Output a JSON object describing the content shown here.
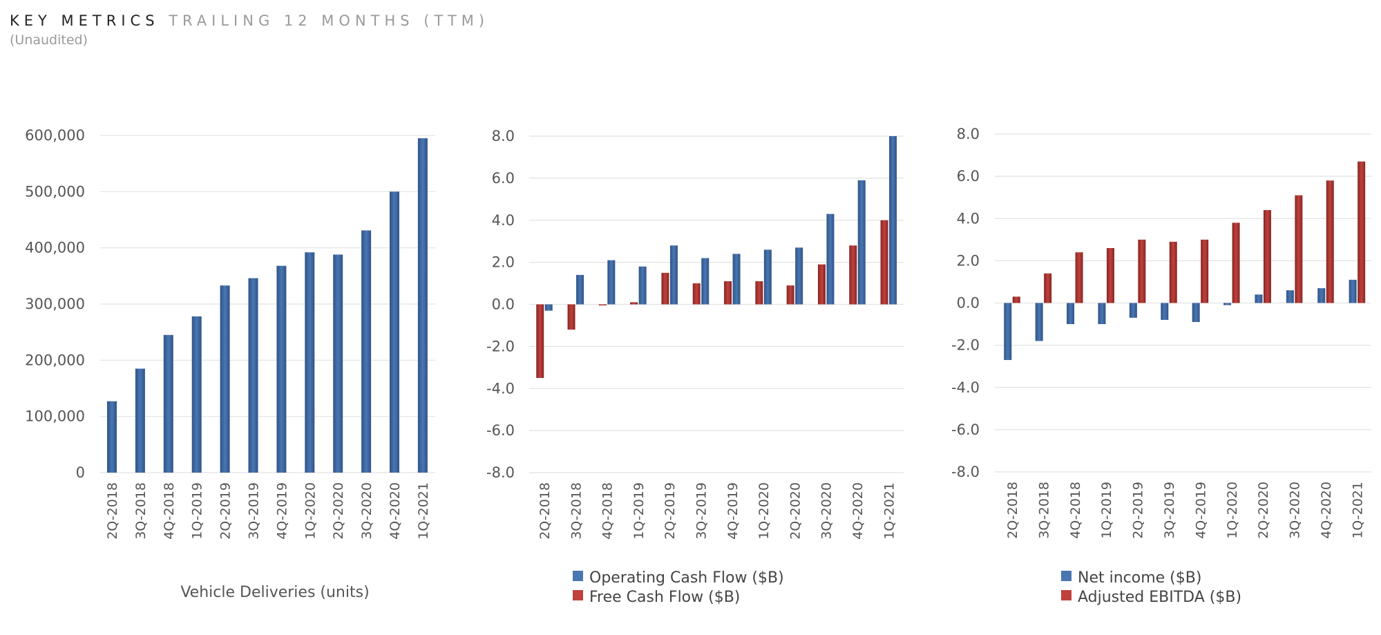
{
  "header": {
    "title": "KEY METRICS",
    "subtitle_inline": "TRAILING 12 MONTHS (TTM)",
    "note": "(Unaudited)"
  },
  "colors": {
    "blue": "#4a76b2",
    "blue_dark": "#2f5488",
    "red": "#c0413c",
    "red_dark": "#862623",
    "grid": "#e2e2e2"
  },
  "chart_data": [
    {
      "type": "bar",
      "categories": [
        "2Q-2018",
        "3Q-2018",
        "4Q-2018",
        "1Q-2019",
        "2Q-2019",
        "3Q-2019",
        "4Q-2019",
        "1Q-2020",
        "2Q-2020",
        "3Q-2020",
        "4Q-2020",
        "1Q-2021"
      ],
      "series": [
        {
          "name": "",
          "color": "#4a76b2",
          "values": [
            127000,
            185000,
            245000,
            278000,
            333000,
            346000,
            368000,
            392000,
            388000,
            431000,
            500000,
            595000
          ]
        }
      ],
      "ylim": [
        0,
        600000
      ],
      "yticks": [
        0,
        100000,
        200000,
        300000,
        400000,
        500000,
        600000
      ],
      "ytick_labels": [
        "0",
        "100,000",
        "200,000",
        "300,000",
        "400,000",
        "500,000",
        "600,000"
      ],
      "caption": "Vehicle Deliveries (units)",
      "grid": true
    },
    {
      "type": "bar",
      "categories": [
        "2Q-2018",
        "3Q-2018",
        "4Q-2018",
        "1Q-2019",
        "2Q-2019",
        "3Q-2019",
        "4Q-2019",
        "1Q-2020",
        "2Q-2020",
        "3Q-2020",
        "4Q-2020",
        "1Q-2021"
      ],
      "series": [
        {
          "name": "Free Cash Flow ($B)",
          "color": "#c0413c",
          "values": [
            -3.5,
            -1.2,
            -0.05,
            0.1,
            1.5,
            1.0,
            1.1,
            1.1,
            0.9,
            1.9,
            2.8,
            4.0
          ]
        },
        {
          "name": "Operating Cash Flow ($B)",
          "color": "#4a76b2",
          "values": [
            -0.3,
            1.4,
            2.1,
            1.8,
            2.8,
            2.2,
            2.4,
            2.6,
            2.7,
            4.3,
            5.9,
            8.0
          ]
        }
      ],
      "legend": [
        {
          "label": "Operating Cash Flow ($B)",
          "color": "#4a76b2"
        },
        {
          "label": "Free Cash Flow ($B)",
          "color": "#c0413c"
        }
      ],
      "ylim": [
        -8,
        8
      ],
      "yticks": [
        -8,
        -6,
        -4,
        -2,
        0,
        2,
        4,
        6,
        8
      ],
      "ytick_labels": [
        "-8.0",
        "-6.0",
        "-4.0",
        "-2.0",
        "0.0",
        "2.0",
        "4.0",
        "6.0",
        "8.0"
      ],
      "grid": true,
      "legend_position": "bottom"
    },
    {
      "type": "bar",
      "categories": [
        "2Q-2018",
        "3Q-2018",
        "4Q-2018",
        "1Q-2019",
        "2Q-2019",
        "3Q-2019",
        "4Q-2019",
        "1Q-2020",
        "2Q-2020",
        "3Q-2020",
        "4Q-2020",
        "1Q-2021"
      ],
      "series": [
        {
          "name": "Net income ($B)",
          "color": "#4a76b2",
          "values": [
            -2.7,
            -1.8,
            -1.0,
            -1.0,
            -0.7,
            -0.8,
            -0.9,
            -0.1,
            0.4,
            0.6,
            0.7,
            1.1
          ]
        },
        {
          "name": "Adjusted EBITDA ($B)",
          "color": "#c0413c",
          "values": [
            0.3,
            1.4,
            2.4,
            2.6,
            3.0,
            2.9,
            3.0,
            3.8,
            4.4,
            5.1,
            5.8,
            6.7
          ]
        }
      ],
      "legend": [
        {
          "label": "Net income ($B)",
          "color": "#4a76b2"
        },
        {
          "label": "Adjusted EBITDA ($B)",
          "color": "#c0413c"
        }
      ],
      "ylim": [
        -8,
        8
      ],
      "yticks": [
        -8,
        -6,
        -4,
        -2,
        0,
        2,
        4,
        6,
        8
      ],
      "ytick_labels": [
        "-8.0",
        "-6.0",
        "-4.0",
        "-2.0",
        "0.0",
        "2.0",
        "4.0",
        "6.0",
        "8.0"
      ],
      "grid": true,
      "legend_position": "bottom"
    }
  ]
}
